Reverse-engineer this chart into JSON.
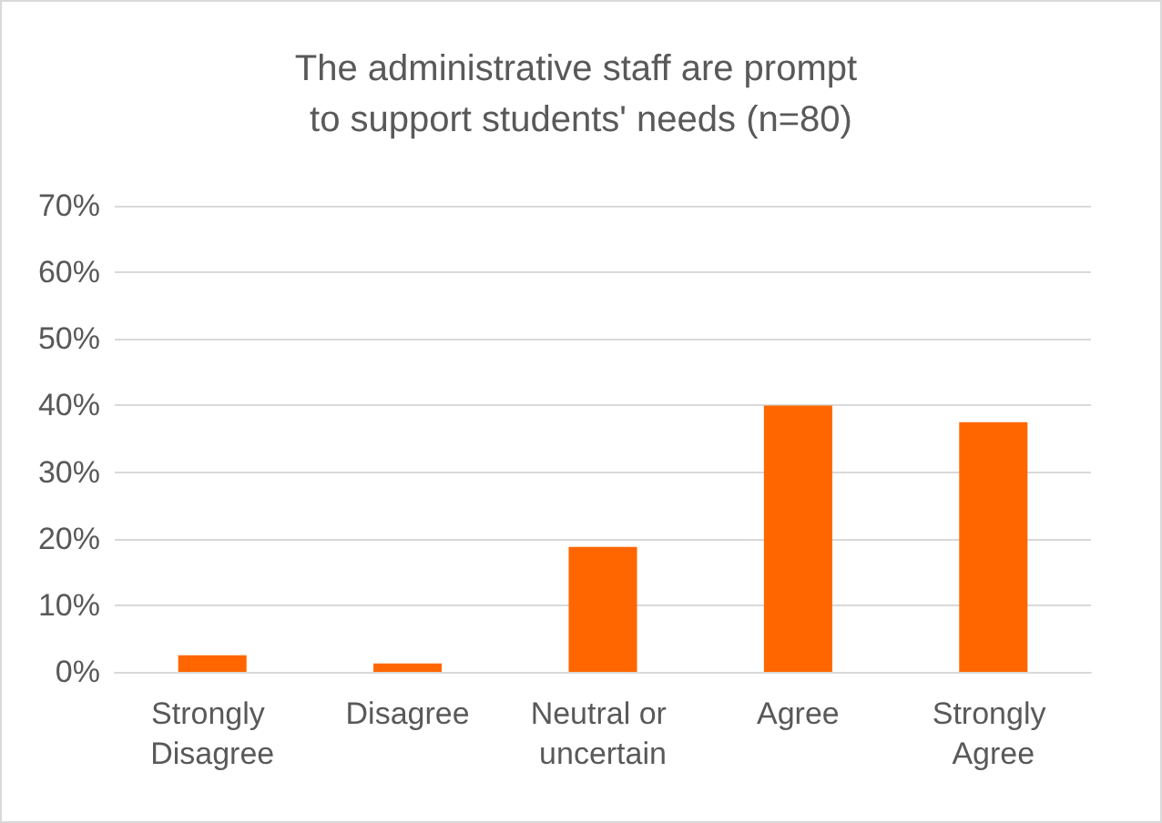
{
  "chart_data": {
    "type": "bar",
    "title": "The administrative staff are prompt to support students' needs (n=80)",
    "categories": [
      "Strongly Disagree",
      "Disagree",
      "Neutral or uncertain",
      "Agree",
      "Strongly Agree"
    ],
    "values": [
      2.5,
      1.25,
      18.75,
      40,
      37.5
    ],
    "color": "#ff6600",
    "ylim": [
      0,
      70
    ],
    "yticks": [
      {
        "value": 0,
        "label": "0%"
      },
      {
        "value": 10,
        "label": "10%"
      },
      {
        "value": 20,
        "label": "20%"
      },
      {
        "value": 30,
        "label": "30%"
      },
      {
        "value": 40,
        "label": "40%"
      },
      {
        "value": 50,
        "label": "50%"
      },
      {
        "value": 60,
        "label": "60%"
      },
      {
        "value": 70,
        "label": "70%"
      }
    ],
    "grid": "y"
  }
}
